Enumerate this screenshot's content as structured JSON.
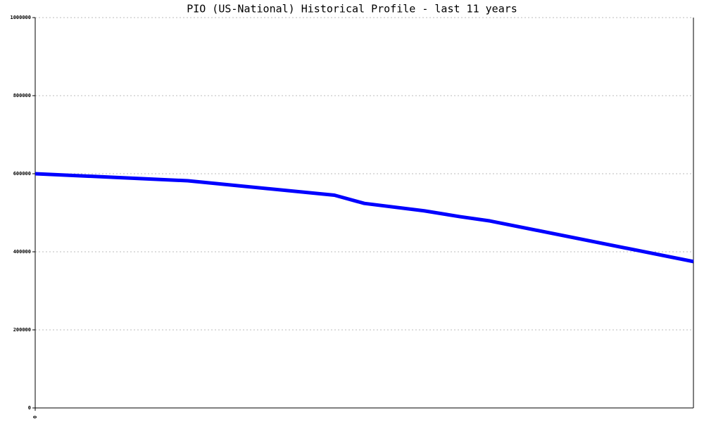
{
  "chart_data": {
    "type": "line",
    "title": "PIO (US-National) Historical Profile - last 11 years",
    "x": [
      0,
      2.55,
      5.0,
      5.5,
      6.5,
      7.1,
      7.6,
      11
    ],
    "series": [
      {
        "color": "#0000ff",
        "values": [
          600000,
          582000,
          545000,
          524000,
          505000,
          490000,
          479000,
          375000
        ]
      }
    ],
    "xlim": [
      0,
      11
    ],
    "xticks": [
      0
    ],
    "ylim": [
      0,
      1000000
    ],
    "yticks": [
      0,
      200000,
      400000,
      600000,
      800000,
      1000000
    ],
    "grid": true
  }
}
